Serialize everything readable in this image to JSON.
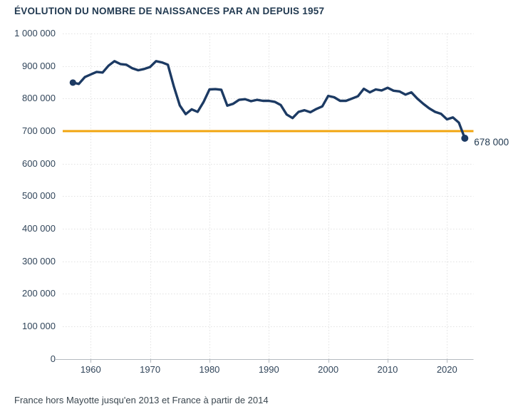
{
  "title": "ÉVOLUTION DU NOMBRE DE NAISSANCES PAR AN DEPUIS 1957",
  "footer_note": "France hors Mayotte jusqu'en 2013 et France à partir de 2014",
  "colors": {
    "line": "#1c3a63",
    "marker": "#1c3a63",
    "reference_line": "#f1a50f",
    "title_text": "#223a51",
    "axis_text": "#31455a",
    "grid": "#e2e2e2",
    "axis_line": "#b4bac0",
    "background": "#ffffff"
  },
  "chart_data": {
    "type": "line",
    "title": "ÉVOLUTION DU NOMBRE DE NAISSANCES PAR AN DEPUIS 1957",
    "xlabel": "",
    "ylabel": "",
    "ylim": [
      0,
      1000000
    ],
    "xlim": [
      1955.3,
      2024.4
    ],
    "grid": true,
    "legend": false,
    "markers": "first and last data point only",
    "x": [
      1957,
      1958,
      1959,
      1960,
      1961,
      1962,
      1963,
      1964,
      1965,
      1966,
      1967,
      1968,
      1969,
      1970,
      1971,
      1972,
      1973,
      1974,
      1975,
      1976,
      1977,
      1978,
      1979,
      1980,
      1981,
      1982,
      1983,
      1984,
      1985,
      1986,
      1987,
      1988,
      1989,
      1990,
      1991,
      1992,
      1993,
      1994,
      1995,
      1996,
      1997,
      1998,
      1999,
      2000,
      2001,
      2002,
      2003,
      2004,
      2005,
      2006,
      2007,
      2008,
      2009,
      2010,
      2011,
      2012,
      2013,
      2014,
      2015,
      2016,
      2017,
      2018,
      2019,
      2020,
      2021,
      2022,
      2023
    ],
    "series": [
      {
        "name": "Nombre de naissances par an",
        "values": [
          849000,
          845000,
          866000,
          874000,
          882000,
          880000,
          901000,
          915000,
          906000,
          904000,
          893000,
          887000,
          891000,
          897000,
          915000,
          911000,
          904000,
          837000,
          779000,
          752000,
          767000,
          759000,
          789000,
          828000,
          829000,
          827000,
          778000,
          784000,
          796000,
          798000,
          792000,
          796000,
          793000,
          793000,
          790000,
          780000,
          751000,
          740000,
          759000,
          764000,
          758000,
          768000,
          776000,
          808000,
          804000,
          793000,
          793000,
          800000,
          807000,
          830000,
          819000,
          828000,
          825000,
          833000,
          824000,
          822000,
          812000,
          819000,
          800000,
          784000,
          770000,
          759000,
          753000,
          736000,
          742000,
          726000,
          678000
        ]
      }
    ],
    "reference_line": {
      "value": 700000,
      "color": "#f1a50f"
    },
    "end_label": "678 000",
    "end_value": 678000,
    "yticks": [
      {
        "value": 1000000,
        "label": "1 000 000"
      },
      {
        "value": 900000,
        "label": "900 000"
      },
      {
        "value": 800000,
        "label": "800 000"
      },
      {
        "value": 700000,
        "label": "700 000"
      },
      {
        "value": 600000,
        "label": "600 000"
      },
      {
        "value": 500000,
        "label": "500 000"
      },
      {
        "value": 400000,
        "label": "400 000"
      },
      {
        "value": 300000,
        "label": "300 000"
      },
      {
        "value": 200000,
        "label": "200 000"
      },
      {
        "value": 100000,
        "label": "100 000"
      },
      {
        "value": 0,
        "label": "0"
      }
    ],
    "xticks": [
      {
        "year": 1960,
        "label": "1960"
      },
      {
        "year": 1970,
        "label": "1970"
      },
      {
        "year": 1980,
        "label": "1980"
      },
      {
        "year": 1990,
        "label": "1990"
      },
      {
        "year": 2000,
        "label": "2000"
      },
      {
        "year": 2010,
        "label": "2010"
      },
      {
        "year": 2020,
        "label": "2020"
      }
    ]
  }
}
